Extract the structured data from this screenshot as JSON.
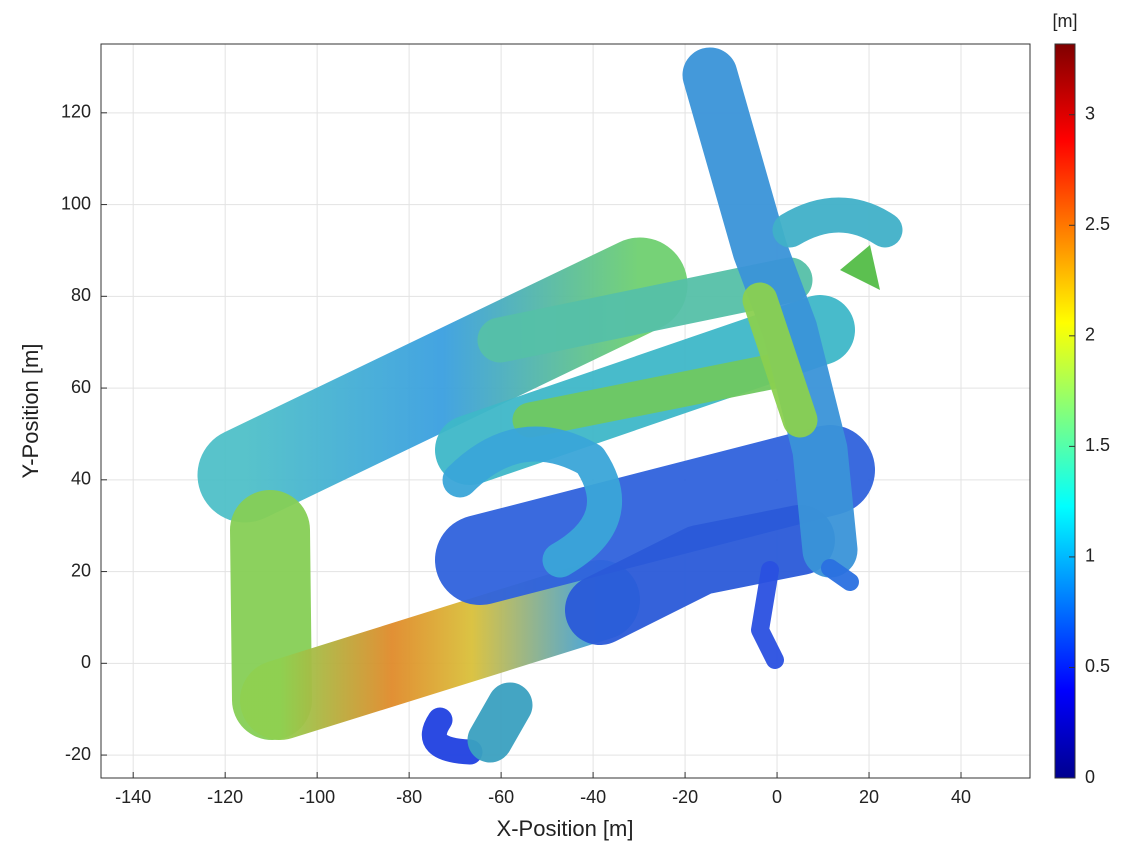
{
  "chart_data": {
    "type": "map",
    "xlabel": "X-Position [m]",
    "ylabel": "Y-Position [m]",
    "xlim": [
      -147,
      55
    ],
    "xticks": [
      -140,
      -120,
      -100,
      -80,
      -60,
      -40,
      -20,
      0,
      20,
      40
    ],
    "ylim": [
      -25,
      135
    ],
    "yticks": [
      -20,
      0,
      20,
      40,
      60,
      80,
      100,
      120
    ],
    "grid": true,
    "colorbar": {
      "label": "[m]",
      "colormap": "jet",
      "lim": [
        0,
        3.32
      ],
      "ticks": [
        0,
        0.5,
        1,
        1.5,
        2,
        2.5,
        3
      ]
    }
  }
}
